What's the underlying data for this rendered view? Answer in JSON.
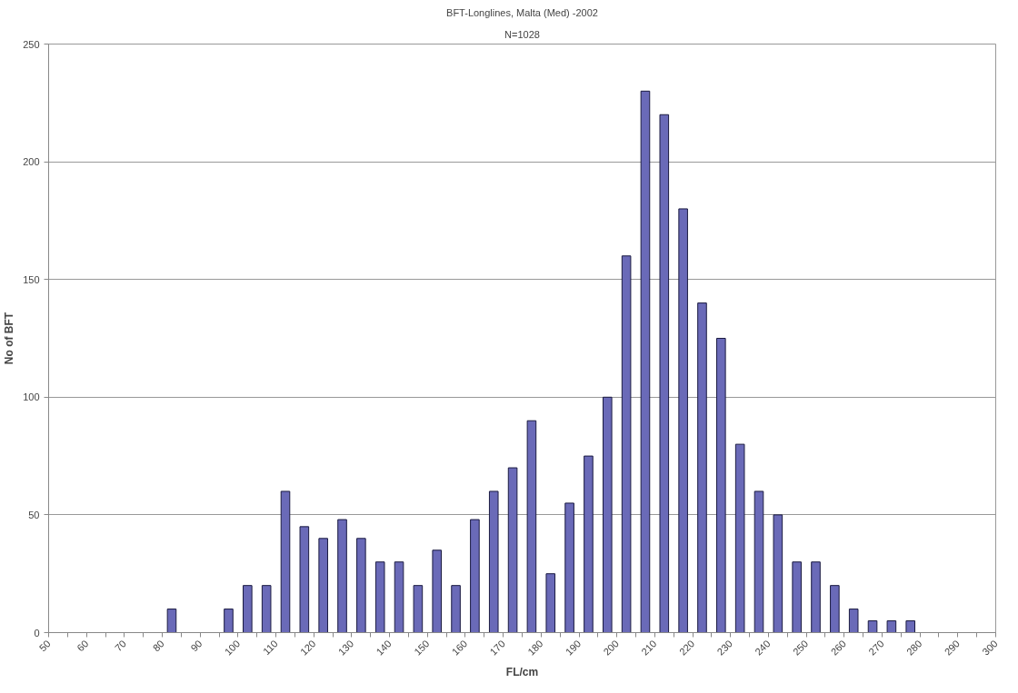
{
  "chart_data": {
    "type": "histogram",
    "title": "BFT-Longlines, Malta (Med) -2002",
    "subtitle": "N=1028",
    "xlabel": "FL/cm",
    "ylabel": "No of BFT",
    "bins": [
      50,
      55,
      60,
      65,
      70,
      75,
      80,
      85,
      90,
      95,
      100,
      105,
      110,
      115,
      120,
      125,
      130,
      135,
      140,
      145,
      150,
      155,
      160,
      165,
      170,
      175,
      180,
      185,
      190,
      195,
      200,
      205,
      210,
      215,
      220,
      225,
      230,
      235,
      240,
      245,
      250,
      255,
      260,
      265,
      270,
      275,
      280,
      285,
      290,
      295,
      300
    ],
    "values": [
      0,
      0,
      0,
      0,
      0,
      0,
      10,
      0,
      0,
      10,
      20,
      20,
      60,
      45,
      40,
      48,
      40,
      30,
      30,
      20,
      35,
      20,
      48,
      60,
      70,
      90,
      25,
      55,
      75,
      100,
      160,
      230,
      220,
      180,
      140,
      125,
      80,
      60,
      50,
      30,
      30,
      20,
      10,
      5,
      5,
      5,
      0,
      0,
      0,
      0
    ],
    "color": "#6a6ab8",
    "xlim": [
      50,
      300
    ],
    "ylim": [
      0,
      250
    ],
    "xticks": [
      50,
      {
        "value": 55,
        "label": null
      },
      60,
      {
        "value": 65,
        "label": null
      },
      70,
      {
        "value": 75,
        "label": null
      },
      80,
      {
        "value": 85,
        "label": null
      },
      90,
      {
        "value": 95,
        "label": null
      },
      100,
      {
        "value": 105,
        "label": null
      },
      110,
      {
        "value": 115,
        "label": null
      },
      120,
      {
        "value": 125,
        "label": null
      },
      130,
      {
        "value": 135,
        "label": null
      },
      140,
      {
        "value": 145,
        "label": null
      },
      150,
      {
        "value": 155,
        "label": null
      },
      160,
      {
        "value": 165,
        "label": null
      },
      170,
      {
        "value": 175,
        "label": null
      },
      180,
      {
        "value": 185,
        "label": null
      },
      190,
      {
        "value": 195,
        "label": null
      },
      200,
      {
        "value": 205,
        "label": null
      },
      210,
      {
        "value": 215,
        "label": null
      },
      220,
      {
        "value": 225,
        "label": null
      },
      230,
      {
        "value": 235,
        "label": null
      },
      240,
      {
        "value": 245,
        "label": null
      },
      250,
      {
        "value": 255,
        "label": null
      },
      260,
      {
        "value": 265,
        "label": null
      },
      270,
      {
        "value": 275,
        "label": null
      },
      280,
      {
        "value": 285,
        "label": null
      },
      290,
      {
        "value": 295,
        "label": null
      },
      300
    ],
    "yticks": [
      0,
      50,
      100,
      150,
      200,
      250
    ],
    "grid": "y"
  }
}
